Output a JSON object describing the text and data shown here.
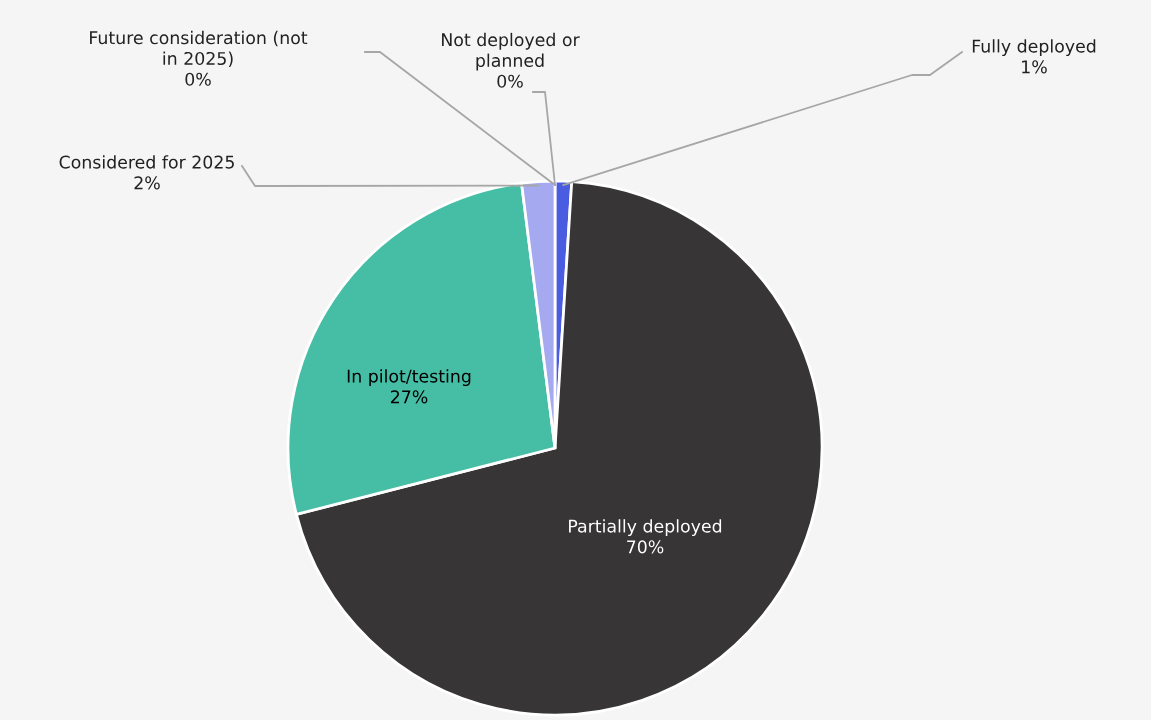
{
  "chart_data": {
    "type": "pie",
    "categories": [
      "Fully deployed",
      "Partially deployed",
      "In pilot/testing",
      "Considered for 2025",
      "Future consideration (not in 2025)",
      "Not deployed or planned"
    ],
    "values": [
      1,
      70,
      27,
      2,
      0,
      0
    ],
    "value_labels": [
      "1%",
      "70%",
      "27%",
      "2%",
      "0%",
      "0%"
    ],
    "colors": [
      "#4a5ce0",
      "#373536",
      "#46bea5",
      "#a5a9f0",
      "#7f7f7f",
      "#bfbfbf"
    ],
    "legend": false
  }
}
